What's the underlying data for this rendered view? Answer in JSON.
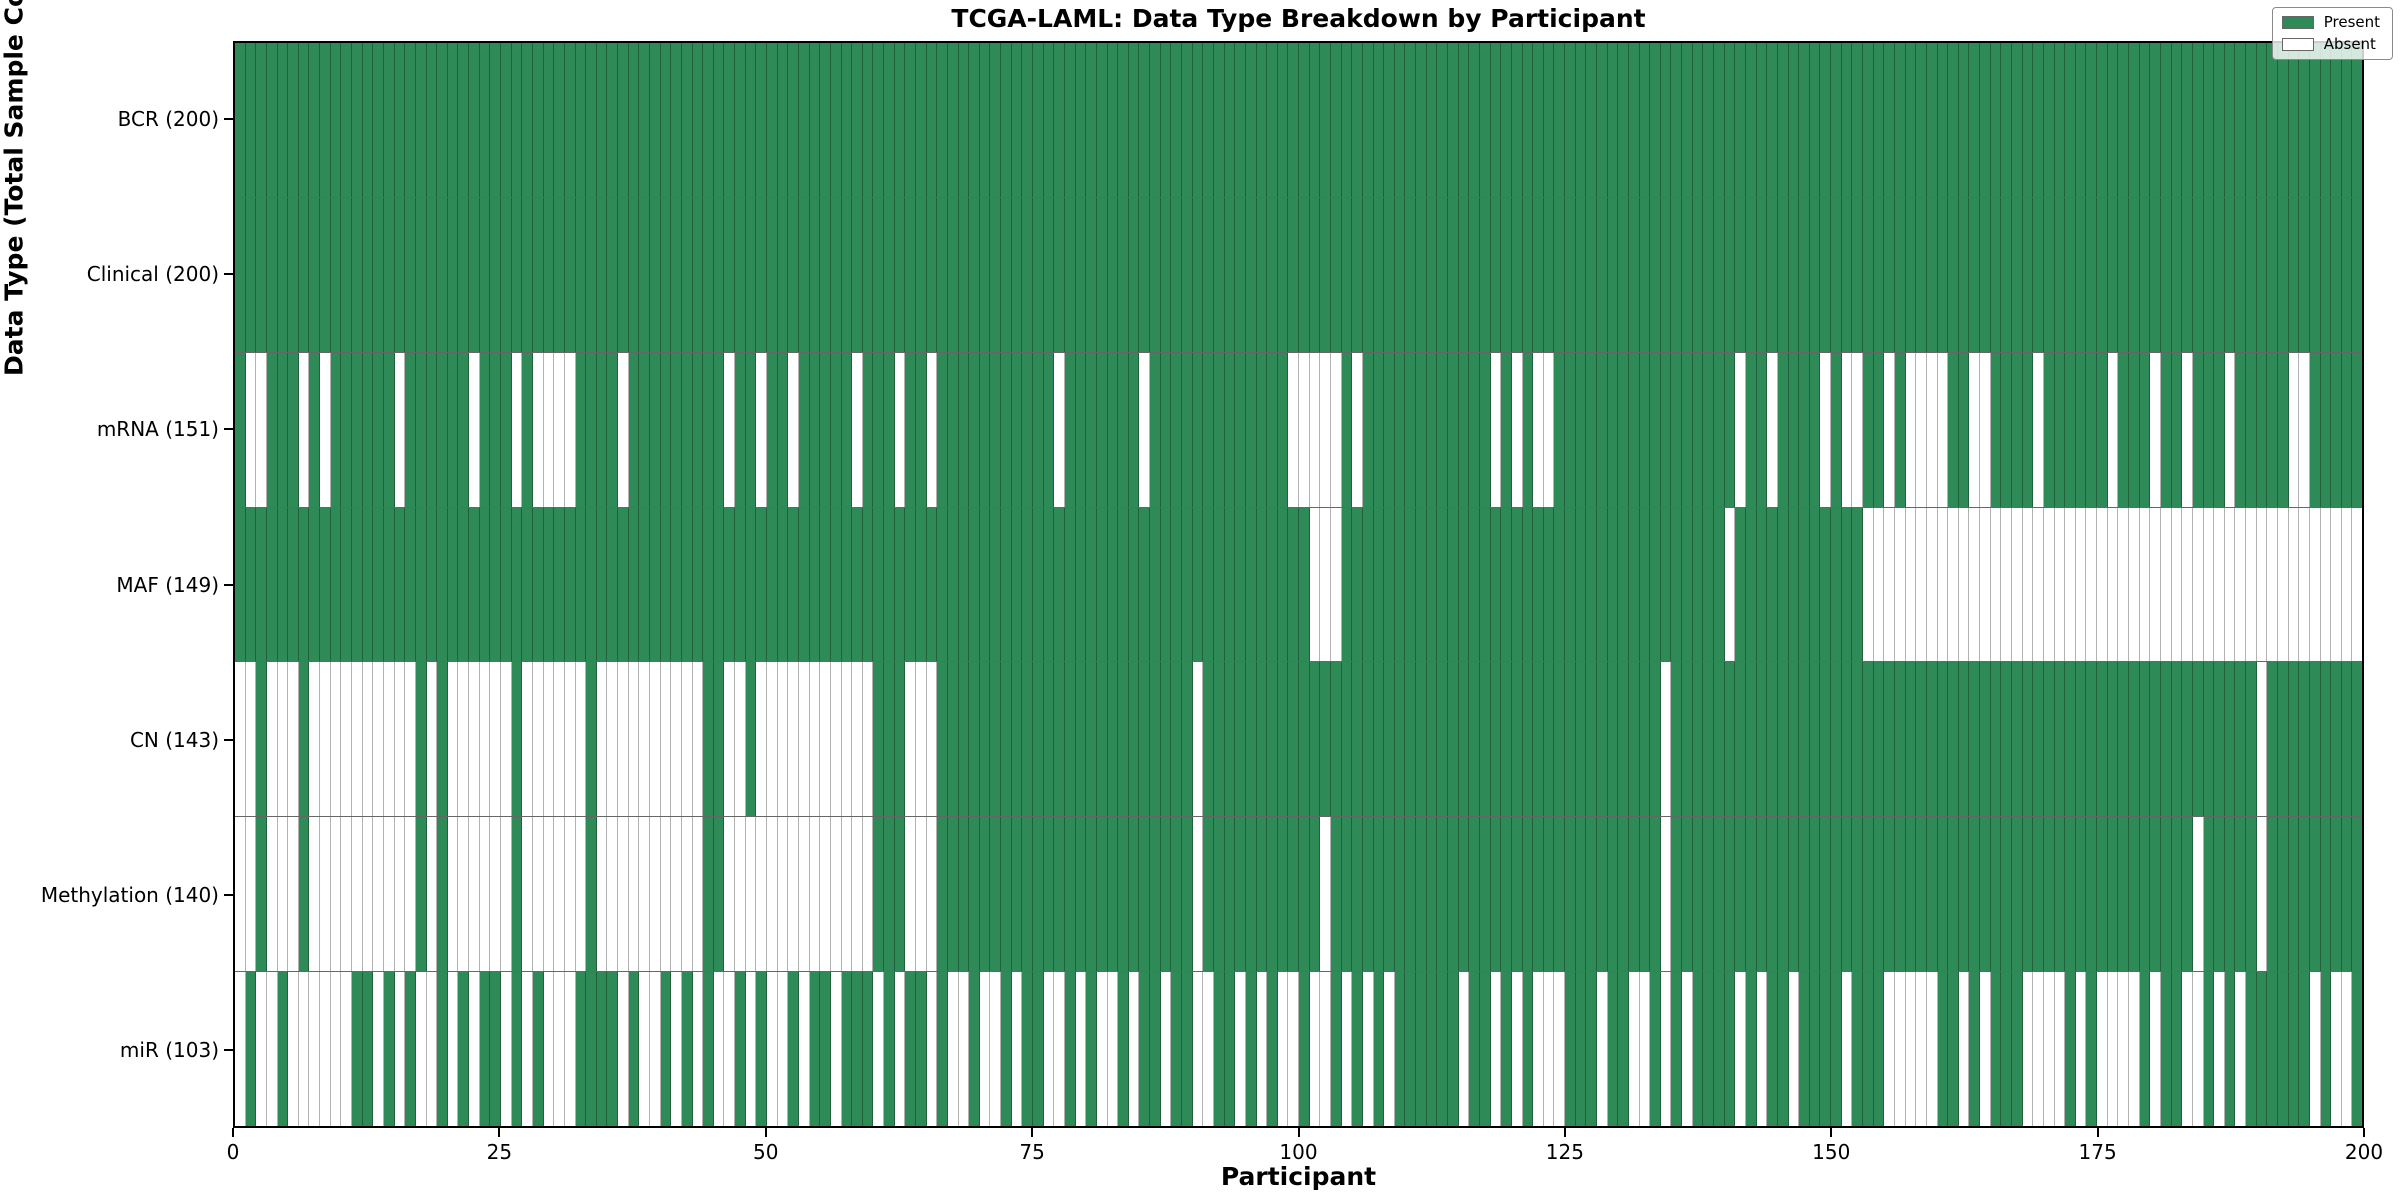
{
  "chart_data": {
    "type": "heatmap",
    "title": "TCGA-LAML: Data Type Breakdown by Participant",
    "xlabel": "Participant",
    "ylabel": "Data Type (Total Sample Count)",
    "x_range": [
      0,
      200
    ],
    "x_ticks": [
      0,
      25,
      50,
      75,
      100,
      125,
      150,
      175,
      200
    ],
    "participants": 200,
    "legend": [
      "Present",
      "Absent"
    ],
    "legend_position": "upper right",
    "grid": true,
    "colors": {
      "present": "#2e8b57",
      "absent": "#ffffff",
      "gridline": "rgba(0,0,0,0.3)"
    },
    "rows": [
      {
        "label": "BCR (200)",
        "name": "BCR",
        "present_count": 200,
        "absent_participants": []
      },
      {
        "label": "Clinical (200)",
        "name": "Clinical",
        "present_count": 200,
        "absent_participants": []
      },
      {
        "label": "mRNA (151)",
        "name": "mRNA",
        "present_count": 151,
        "absent_participants": [
          1,
          2,
          6,
          8,
          15,
          22,
          26,
          28,
          29,
          30,
          31,
          36,
          46,
          49,
          52,
          58,
          62,
          65,
          77,
          85,
          99,
          100,
          101,
          102,
          103,
          105,
          118,
          120,
          122,
          123,
          141,
          144,
          149,
          151,
          152,
          155,
          157,
          158,
          159,
          160,
          163,
          164,
          169,
          176,
          180,
          183,
          187,
          193,
          194
        ]
      },
      {
        "label": "MAF (149)",
        "name": "MAF",
        "present_count": 149,
        "absent_participants": [
          101,
          102,
          103,
          140,
          153,
          154,
          155,
          156,
          157,
          158,
          159,
          160,
          161,
          162,
          163,
          164,
          165,
          166,
          167,
          168,
          169,
          170,
          171,
          172,
          173,
          174,
          175,
          176,
          177,
          178,
          179,
          180,
          181,
          182,
          183,
          184,
          185,
          186,
          187,
          188,
          189,
          190,
          191,
          192,
          193,
          194,
          195,
          196,
          197,
          198,
          199
        ]
      },
      {
        "label": "CN (143)",
        "name": "CN",
        "present_count": 143,
        "absent_participants": [
          0,
          1,
          3,
          4,
          5,
          7,
          8,
          9,
          10,
          11,
          12,
          13,
          14,
          15,
          16,
          18,
          20,
          21,
          22,
          23,
          24,
          25,
          27,
          28,
          29,
          30,
          31,
          32,
          34,
          35,
          36,
          37,
          38,
          39,
          40,
          41,
          42,
          43,
          46,
          47,
          49,
          50,
          51,
          52,
          53,
          54,
          55,
          56,
          57,
          58,
          59,
          63,
          64,
          65,
          90,
          134,
          190
        ]
      },
      {
        "label": "Methylation (140)",
        "name": "Methylation",
        "present_count": 140,
        "absent_participants": [
          0,
          1,
          3,
          4,
          5,
          7,
          8,
          9,
          10,
          11,
          12,
          13,
          14,
          15,
          16,
          18,
          20,
          21,
          22,
          23,
          24,
          25,
          27,
          28,
          29,
          30,
          31,
          32,
          34,
          35,
          36,
          37,
          38,
          39,
          40,
          41,
          42,
          43,
          46,
          47,
          48,
          49,
          50,
          51,
          52,
          53,
          54,
          55,
          56,
          57,
          58,
          59,
          63,
          64,
          65,
          90,
          102,
          134,
          184,
          190
        ]
      },
      {
        "label": "miR (103)",
        "name": "miR",
        "present_count": 103,
        "absent_participants": [
          0,
          2,
          3,
          5,
          6,
          7,
          8,
          9,
          10,
          13,
          15,
          17,
          18,
          20,
          22,
          25,
          27,
          29,
          30,
          31,
          36,
          38,
          39,
          41,
          43,
          45,
          46,
          48,
          50,
          51,
          53,
          56,
          60,
          62,
          65,
          67,
          68,
          70,
          71,
          73,
          76,
          77,
          79,
          81,
          82,
          84,
          87,
          90,
          91,
          94,
          96,
          98,
          99,
          101,
          102,
          104,
          106,
          108,
          115,
          118,
          120,
          122,
          123,
          124,
          128,
          131,
          132,
          134,
          136,
          141,
          143,
          146,
          151,
          155,
          156,
          157,
          158,
          159,
          162,
          164,
          168,
          169,
          170,
          171,
          173,
          175,
          176,
          177,
          178,
          180,
          183,
          184,
          186,
          188,
          195,
          197,
          198
        ]
      }
    ]
  }
}
